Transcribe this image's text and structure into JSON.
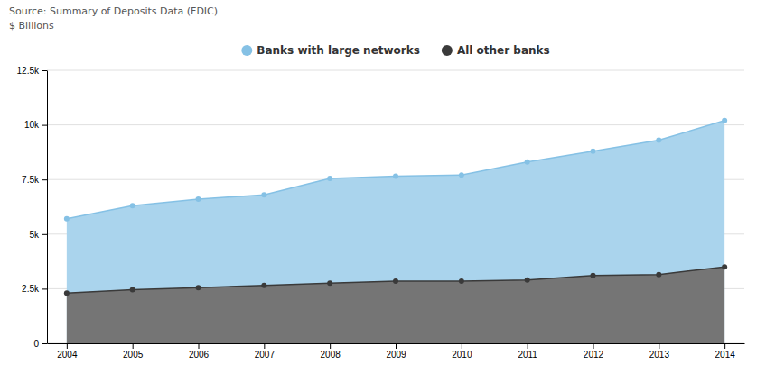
{
  "chart_data": {
    "type": "area",
    "annotations": [
      "Source: Summary of Deposits Data (FDIC)"
    ],
    "ylabel": "$ Billions",
    "x": [
      2004,
      2005,
      2006,
      2007,
      2008,
      2009,
      2010,
      2011,
      2012,
      2013,
      2014
    ],
    "series": [
      {
        "name": "Banks with large networks",
        "color": "#85c1e5",
        "marker": "circle",
        "values": [
          5700,
          6300,
          6600,
          6800,
          7550,
          7650,
          7700,
          8300,
          8800,
          9300,
          10200
        ]
      },
      {
        "name": "All other banks",
        "color": "#3a3a3a",
        "marker": "circle",
        "values": [
          2300,
          2450,
          2550,
          2650,
          2750,
          2850,
          2850,
          2900,
          3100,
          3150,
          3500
        ]
      }
    ],
    "xlim": [
      2003.7,
      2014.3
    ],
    "xticks": [
      2004,
      2005,
      2006,
      2007,
      2008,
      2009,
      2010,
      2011,
      2012,
      2013,
      2014
    ],
    "ylim": [
      0,
      12500
    ],
    "yticks": [
      0,
      {
        "value": 2500,
        "label": "2.5k"
      },
      {
        "value": 5000,
        "label": "5k"
      },
      {
        "value": 7500,
        "label": "7.5k"
      },
      {
        "value": 10000,
        "label": "10k"
      },
      {
        "value": 12500,
        "label": "12.5k"
      }
    ],
    "grid": true,
    "legend": "top"
  }
}
